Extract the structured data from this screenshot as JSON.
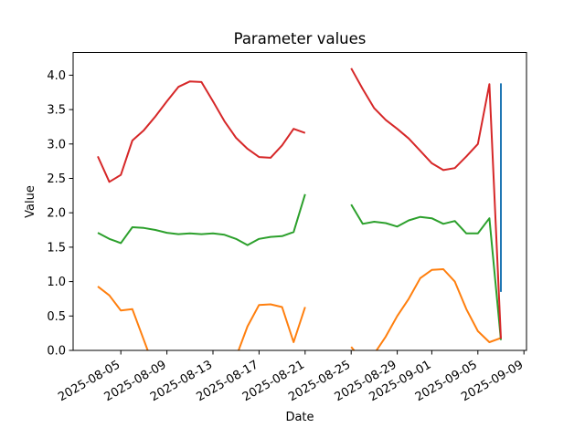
{
  "chart_data": {
    "type": "line",
    "title": "Parameter values",
    "xlabel": "Date",
    "ylabel": "Value",
    "legend": "none",
    "grid": false,
    "ylim": [
      0,
      4.33
    ],
    "xlim_dates": [
      "2025-08-01",
      "2025-09-09"
    ],
    "y_tick_labels": [
      "0.0",
      "0.5",
      "1.0",
      "1.5",
      "2.0",
      "2.5",
      "3.0",
      "3.5",
      "4.0"
    ],
    "x_tick_labels": [
      "2025-08-05",
      "2025-08-09",
      "2025-08-13",
      "2025-08-17",
      "2025-08-21",
      "2025-08-25",
      "2025-08-29",
      "2025-09-01",
      "2025-09-05",
      "2025-09-09"
    ],
    "x_tick_rotation_deg": 30,
    "dates": [
      "2025-08-03",
      "2025-08-04",
      "2025-08-05",
      "2025-08-06",
      "2025-08-07",
      "2025-08-08",
      "2025-08-09",
      "2025-08-10",
      "2025-08-11",
      "2025-08-12",
      "2025-08-13",
      "2025-08-14",
      "2025-08-15",
      "2025-08-16",
      "2025-08-17",
      "2025-08-18",
      "2025-08-19",
      "2025-08-20",
      "2025-08-21",
      "2025-08-22",
      "2025-08-23",
      "2025-08-24",
      "2025-08-25",
      "2025-08-26",
      "2025-08-27",
      "2025-08-28",
      "2025-08-29",
      "2025-08-30",
      "2025-08-31",
      "2025-09-01",
      "2025-09-02",
      "2025-09-03",
      "2025-09-04",
      "2025-09-05",
      "2025-09-06",
      "2025-09-07"
    ],
    "series": [
      {
        "name": "blue",
        "color": "#1f77b4",
        "values": [
          null,
          null,
          null,
          null,
          null,
          null,
          null,
          null,
          null,
          null,
          null,
          null,
          null,
          null,
          null,
          null,
          null,
          null,
          null,
          null,
          null,
          null,
          null,
          null,
          null,
          null,
          null,
          null,
          null,
          null,
          null,
          null,
          null,
          null,
          null,
          3.88
        ],
        "vertical_segment": {
          "date": "2025-09-07",
          "from": 0.85,
          "to": 3.88
        }
      },
      {
        "name": "orange",
        "color": "#ff7f0e",
        "values": [
          0.93,
          0.8,
          0.58,
          0.6,
          0.15,
          -0.3,
          -0.35,
          -0.3,
          -0.3,
          -0.3,
          -0.3,
          -0.25,
          -0.1,
          0.35,
          0.66,
          0.67,
          0.63,
          0.12,
          0.63,
          null,
          null,
          null,
          0.05,
          -0.15,
          -0.05,
          0.2,
          0.5,
          0.75,
          1.05,
          1.17,
          1.18,
          1.0,
          0.6,
          0.28,
          0.12,
          0.18
        ]
      },
      {
        "name": "green",
        "color": "#2ca02c",
        "values": [
          1.71,
          1.62,
          1.56,
          1.79,
          1.78,
          1.75,
          1.71,
          1.69,
          1.7,
          1.69,
          1.7,
          1.68,
          1.62,
          1.53,
          1.62,
          1.65,
          1.66,
          1.72,
          2.27,
          null,
          null,
          null,
          2.12,
          1.84,
          1.87,
          1.85,
          1.8,
          1.89,
          1.94,
          1.92,
          1.84,
          1.88,
          1.7,
          1.7,
          1.92,
          0.15
        ]
      },
      {
        "name": "red",
        "color": "#d62728",
        "values": [
          2.82,
          2.45,
          2.55,
          3.05,
          3.2,
          3.4,
          3.62,
          3.83,
          3.91,
          3.9,
          3.62,
          3.33,
          3.09,
          2.93,
          2.81,
          2.8,
          2.98,
          3.22,
          3.16,
          null,
          null,
          null,
          4.1,
          3.8,
          3.52,
          3.35,
          3.22,
          3.08,
          2.9,
          2.72,
          2.62,
          2.65,
          2.82,
          3.0,
          3.87,
          0.17
        ]
      }
    ]
  }
}
